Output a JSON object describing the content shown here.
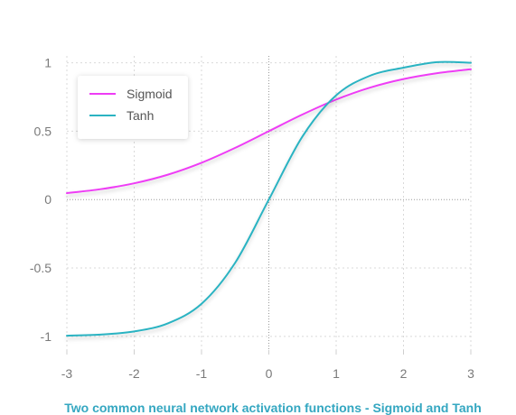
{
  "chart_data": {
    "type": "line",
    "title": "Two common neural network activation functions - Sigmoid and Tanh",
    "xlim": [
      -3,
      3
    ],
    "ylim": [
      -1.1,
      1.05
    ],
    "x_ticks": [
      -3,
      -2,
      -1,
      0,
      1,
      2,
      3
    ],
    "x_tick_labels": [
      "-3",
      "-2",
      "-1",
      "0",
      "1",
      "2",
      "3"
    ],
    "y_ticks": [
      -1,
      -0.5,
      0,
      0.5,
      1
    ],
    "y_tick_labels": [
      "-1",
      "-0.5",
      "0",
      "0.5",
      "1"
    ],
    "grid": true,
    "legend_position": "top-left",
    "x": [
      -3,
      -2.5,
      -2,
      -1.5,
      -1,
      -0.5,
      0,
      0.5,
      1,
      1.5,
      2,
      2.5,
      3
    ],
    "series": [
      {
        "name": "Sigmoid",
        "color": "#ee3cf5",
        "values": [
          0.047,
          0.076,
          0.119,
          0.182,
          0.269,
          0.378,
          0.5,
          0.622,
          0.731,
          0.818,
          0.881,
          0.924,
          0.953
        ]
      },
      {
        "name": "Tanh",
        "color": "#2bb3c2",
        "values": [
          -0.995,
          -0.987,
          -0.964,
          -0.905,
          -0.762,
          -0.462,
          0,
          0.462,
          0.762,
          0.905,
          0.964,
          1.005,
          1.0
        ]
      }
    ]
  }
}
